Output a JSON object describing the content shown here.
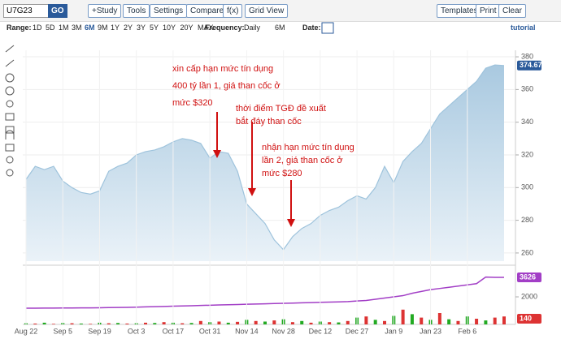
{
  "toolbar": {
    "symbol": "U7G23",
    "go": "GO",
    "buttons": [
      "+Study",
      "Tools",
      "Settings",
      "Compare",
      "f(x)",
      "Grid View"
    ],
    "right_buttons": [
      "Templates",
      "Print",
      "Clear"
    ]
  },
  "range_bar": {
    "range_label": "Range:",
    "ranges": [
      "1D",
      "5D",
      "1M",
      "3M",
      "6M",
      "9M",
      "1Y",
      "2Y",
      "3Y",
      "5Y",
      "10Y",
      "20Y",
      "MAX"
    ],
    "frequency_label": "Frequency:",
    "frequency": "Daily",
    "period": "6M",
    "date_label": "Date:",
    "tutorial": "tutorial"
  },
  "chart_data": [
    {
      "type": "area",
      "color": "#9ec3dc",
      "categories": [
        "Aug 22",
        null,
        null,
        null,
        "Sep 5",
        null,
        null,
        null,
        "Sep 19",
        null,
        null,
        null,
        "Oct 3",
        null,
        null,
        null,
        "Oct 17",
        null,
        null,
        null,
        "Oct 31",
        null,
        null,
        null,
        "Nov 14",
        null,
        null,
        null,
        "Nov 28",
        null,
        null,
        null,
        "Dec 12",
        null,
        null,
        null,
        "Dec 27",
        null,
        null,
        null,
        "Jan 9",
        null,
        null,
        null,
        "Jan 23",
        null,
        null,
        null,
        "Feb 6",
        null,
        null,
        null,
        null
      ],
      "values": [
        305,
        313,
        311,
        313,
        304,
        300,
        297,
        296,
        298,
        310,
        313,
        315,
        320,
        322,
        323,
        325,
        328,
        330,
        329,
        327,
        318,
        322,
        321,
        310,
        290,
        284,
        278,
        268,
        262,
        270,
        275,
        278,
        283,
        286,
        288,
        292,
        295,
        293,
        300,
        313,
        303,
        316,
        322,
        327,
        336,
        345,
        350,
        355,
        360,
        365,
        373,
        375,
        374.67
      ],
      "last_label": "374.67",
      "ylim": [
        255,
        384
      ],
      "yticks": [
        260,
        280,
        300,
        320,
        340,
        360,
        380
      ],
      "annotations": [
        {
          "lines": [
            "xin cấp hạn mức tín dụng",
            "400 tỷ lần 1, giá than cốc ở",
            "mức $320"
          ]
        },
        {
          "lines": [
            "thời điểm TGĐ đề xuất",
            "bắt đáy than cốc"
          ]
        },
        {
          "lines": [
            "nhận hạn mức tín dụng",
            "lần 2, giá than cốc ở",
            "mức $280"
          ]
        }
      ]
    },
    {
      "type": "line",
      "color": "#a23ec6",
      "values": [
        1050,
        1050,
        1060,
        1060,
        1070,
        1070,
        1080,
        1080,
        1090,
        1100,
        1110,
        1120,
        1140,
        1160,
        1180,
        1200,
        1220,
        1240,
        1260,
        1280,
        1300,
        1320,
        1340,
        1360,
        1380,
        1400,
        1420,
        1440,
        1460,
        1480,
        1500,
        1520,
        1540,
        1560,
        1580,
        1600,
        1650,
        1700,
        1800,
        1900,
        2000,
        2100,
        2300,
        2450,
        2600,
        2700,
        2800,
        2900,
        3000,
        3100,
        3650,
        3626,
        3626
      ],
      "last_label": "3626",
      "ylim": [
        240,
        4440
      ],
      "yticks": [
        2000
      ]
    },
    {
      "type": "bar",
      "values": [
        20,
        15,
        30,
        10,
        25,
        20,
        15,
        10,
        30,
        20,
        25,
        15,
        20,
        30,
        25,
        40,
        30,
        20,
        25,
        60,
        40,
        50,
        30,
        45,
        80,
        60,
        50,
        70,
        90,
        40,
        60,
        30,
        50,
        40,
        35,
        60,
        120,
        140,
        80,
        60,
        150,
        260,
        180,
        120,
        80,
        200,
        90,
        60,
        140,
        100,
        70,
        120,
        140
      ],
      "colors": [
        "#2a2",
        "#d33",
        "#2a2",
        "#d33",
        "#2a2",
        "#d33",
        "#2a2",
        "#d33",
        "#2a2",
        "#d33",
        "#2a2",
        "#d33",
        "#2a2",
        "#d33",
        "#2a2",
        "#d33",
        "#2a2",
        "#d33",
        "#2a2",
        "#d33",
        "#2a2",
        "#d33",
        "#2a2",
        "#d33",
        "#2a2",
        "#d33",
        "#2a2",
        "#d33",
        "#2a2",
        "#d33",
        "#2a2",
        "#d33",
        "#2a2",
        "#d33",
        "#2a2",
        "#d33",
        "#2a2",
        "#d33",
        "#2a2",
        "#d33",
        "#2a2",
        "#d33",
        "#2a2",
        "#d33",
        "#2a2",
        "#d33",
        "#2a2",
        "#d33",
        "#2a2",
        "#d33",
        "#2a2",
        "#d33",
        "#d33"
      ],
      "last_label": "140",
      "ylim": [
        0,
        1000
      ]
    }
  ]
}
